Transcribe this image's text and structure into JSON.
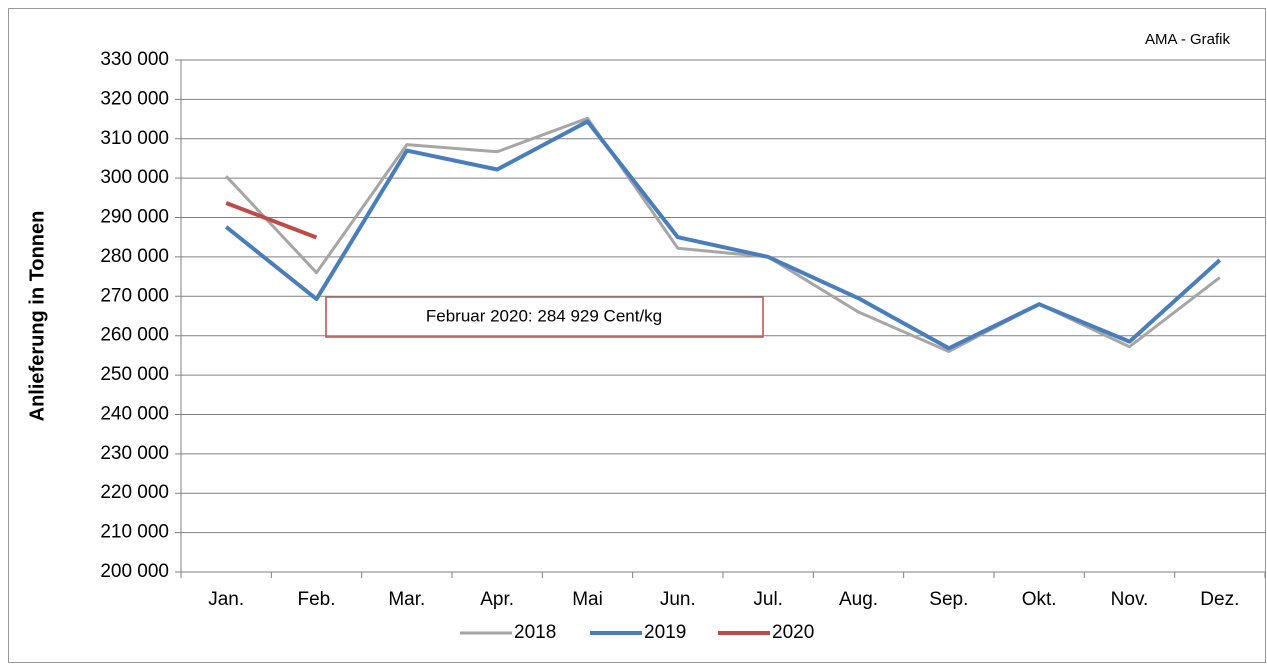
{
  "chart_data": {
    "type": "line",
    "source": "AMA - Grafik",
    "y_label": "Anlieferung in Tonnen",
    "annotation": "Februar 2020: 284 929 Cent/kg",
    "categories": [
      "Jan.",
      "Feb.",
      "Mar.",
      "Apr.",
      "Mai",
      "Jun.",
      "Jul.",
      "Aug.",
      "Sep.",
      "Okt.",
      "Nov.",
      "Dez."
    ],
    "series": [
      {
        "name": "2018",
        "color": "#a6a6a6",
        "width": 3,
        "values": [
          300500,
          276000,
          308500,
          306700,
          315200,
          282200,
          280000,
          266000,
          256000,
          268000,
          257200,
          274800
        ]
      },
      {
        "name": "2019",
        "color": "#4a7ebb",
        "width": 4,
        "values": [
          287600,
          269300,
          307000,
          302200,
          314400,
          285000,
          280000,
          269500,
          256800,
          268000,
          258500,
          279200
        ]
      },
      {
        "name": "2020",
        "color": "#be4b48",
        "width": 4,
        "values": [
          293700,
          284929,
          null,
          null,
          null,
          null,
          null,
          null,
          null,
          null,
          null,
          null
        ]
      }
    ],
    "ylim": [
      200000,
      330000
    ],
    "yticks": [
      {
        "value": 200000,
        "label": "200 000"
      },
      {
        "value": 210000,
        "label": "210 000"
      },
      {
        "value": 220000,
        "label": "220 000"
      },
      {
        "value": 230000,
        "label": "230 000"
      },
      {
        "value": 240000,
        "label": "240 000"
      },
      {
        "value": 250000,
        "label": "250 000"
      },
      {
        "value": 260000,
        "label": "260 000"
      },
      {
        "value": 270000,
        "label": "270 000"
      },
      {
        "value": 280000,
        "label": "280 000"
      },
      {
        "value": 290000,
        "label": "290 000"
      },
      {
        "value": 300000,
        "label": "300 000"
      },
      {
        "value": 310000,
        "label": "310 000"
      },
      {
        "value": 320000,
        "label": "320 000"
      },
      {
        "value": 330000,
        "label": "330 000"
      }
    ],
    "grid": true
  }
}
